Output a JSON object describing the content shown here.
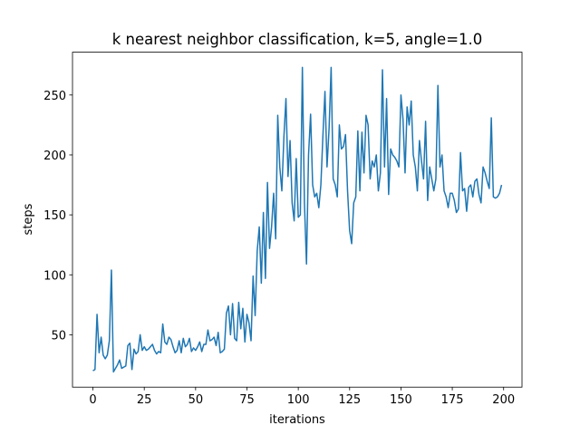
{
  "chart_data": {
    "type": "line",
    "title": "k nearest neighbor classification, k=5, angle=1.0",
    "xlabel": "iterations",
    "ylabel": "steps",
    "color": "#1f77b4",
    "x": [
      0,
      1,
      2,
      3,
      4,
      5,
      6,
      7,
      8,
      9,
      10,
      11,
      12,
      13,
      14,
      15,
      16,
      17,
      18,
      19,
      20,
      21,
      22,
      23,
      24,
      25,
      26,
      27,
      28,
      29,
      30,
      31,
      32,
      33,
      34,
      35,
      36,
      37,
      38,
      39,
      40,
      41,
      42,
      43,
      44,
      45,
      46,
      47,
      48,
      49,
      50,
      51,
      52,
      53,
      54,
      55,
      56,
      57,
      58,
      59,
      60,
      61,
      62,
      63,
      64,
      65,
      66,
      67,
      68,
      69,
      70,
      71,
      72,
      73,
      74,
      75,
      76,
      77,
      78,
      79,
      80,
      81,
      82,
      83,
      84,
      85,
      86,
      87,
      88,
      89,
      90,
      91,
      92,
      93,
      94,
      95,
      96,
      97,
      98,
      99,
      100,
      101,
      102,
      103,
      104,
      105,
      106,
      107,
      108,
      109,
      110,
      111,
      112,
      113,
      114,
      115,
      116,
      117,
      118,
      119,
      120,
      121,
      122,
      123,
      124,
      125,
      126,
      127,
      128,
      129,
      130,
      131,
      132,
      133,
      134,
      135,
      136,
      137,
      138,
      139,
      140,
      141,
      142,
      143,
      144,
      145,
      146,
      147,
      148,
      149,
      150,
      151,
      152,
      153,
      154,
      155,
      156,
      157,
      158,
      159,
      160,
      161,
      162,
      163,
      164,
      165,
      166,
      167,
      168,
      169,
      170,
      171,
      172,
      173,
      174,
      175,
      176,
      177,
      178,
      179,
      180,
      181,
      182,
      183,
      184,
      185,
      186,
      187,
      188,
      189,
      190,
      191,
      192,
      193,
      194,
      195,
      196,
      197,
      198,
      199
    ],
    "values": [
      20,
      21,
      67,
      35,
      48,
      33,
      30,
      33,
      45,
      104,
      19,
      22,
      25,
      29,
      22,
      23,
      24,
      41,
      43,
      21,
      38,
      34,
      36,
      50,
      37,
      40,
      37,
      38,
      40,
      42,
      37,
      34,
      36,
      35,
      59,
      44,
      42,
      48,
      46,
      40,
      35,
      37,
      45,
      35,
      47,
      40,
      42,
      47,
      36,
      39,
      37,
      40,
      44,
      36,
      42,
      42,
      54,
      45,
      46,
      48,
      41,
      52,
      35,
      36,
      38,
      68,
      74,
      50,
      76,
      47,
      45,
      77,
      55,
      72,
      44,
      67,
      60,
      45,
      99,
      66,
      120,
      140,
      93,
      152,
      97,
      177,
      122,
      140,
      168,
      130,
      233,
      190,
      170,
      215,
      247,
      182,
      212,
      160,
      145,
      197,
      148,
      150,
      273,
      160,
      109,
      200,
      234,
      175,
      165,
      168,
      156,
      175,
      216,
      253,
      190,
      222,
      273,
      180,
      175,
      165,
      225,
      205,
      207,
      217,
      170,
      137,
      126,
      160,
      165,
      220,
      170,
      219,
      185,
      233,
      225,
      180,
      195,
      190,
      200,
      170,
      185,
      271,
      190,
      247,
      167,
      205,
      200,
      198,
      195,
      190,
      250,
      230,
      185,
      240,
      225,
      245,
      200,
      190,
      170,
      212,
      195,
      180,
      228,
      162,
      190,
      180,
      170,
      180,
      258,
      190,
      200,
      170,
      165,
      156,
      168,
      168,
      162,
      152,
      155,
      202,
      170,
      172,
      153,
      173,
      175,
      165,
      178,
      180,
      167,
      160,
      190,
      185,
      178,
      172,
      231,
      165,
      164,
      165,
      168,
      175
    ],
    "xlim": [
      -9.95,
      208.95
    ],
    "ylim": [
      6.3,
      285.7
    ],
    "xticks": [
      0,
      25,
      50,
      75,
      100,
      125,
      150,
      175,
      200
    ],
    "yticks": [
      50,
      100,
      150,
      200,
      250
    ]
  }
}
